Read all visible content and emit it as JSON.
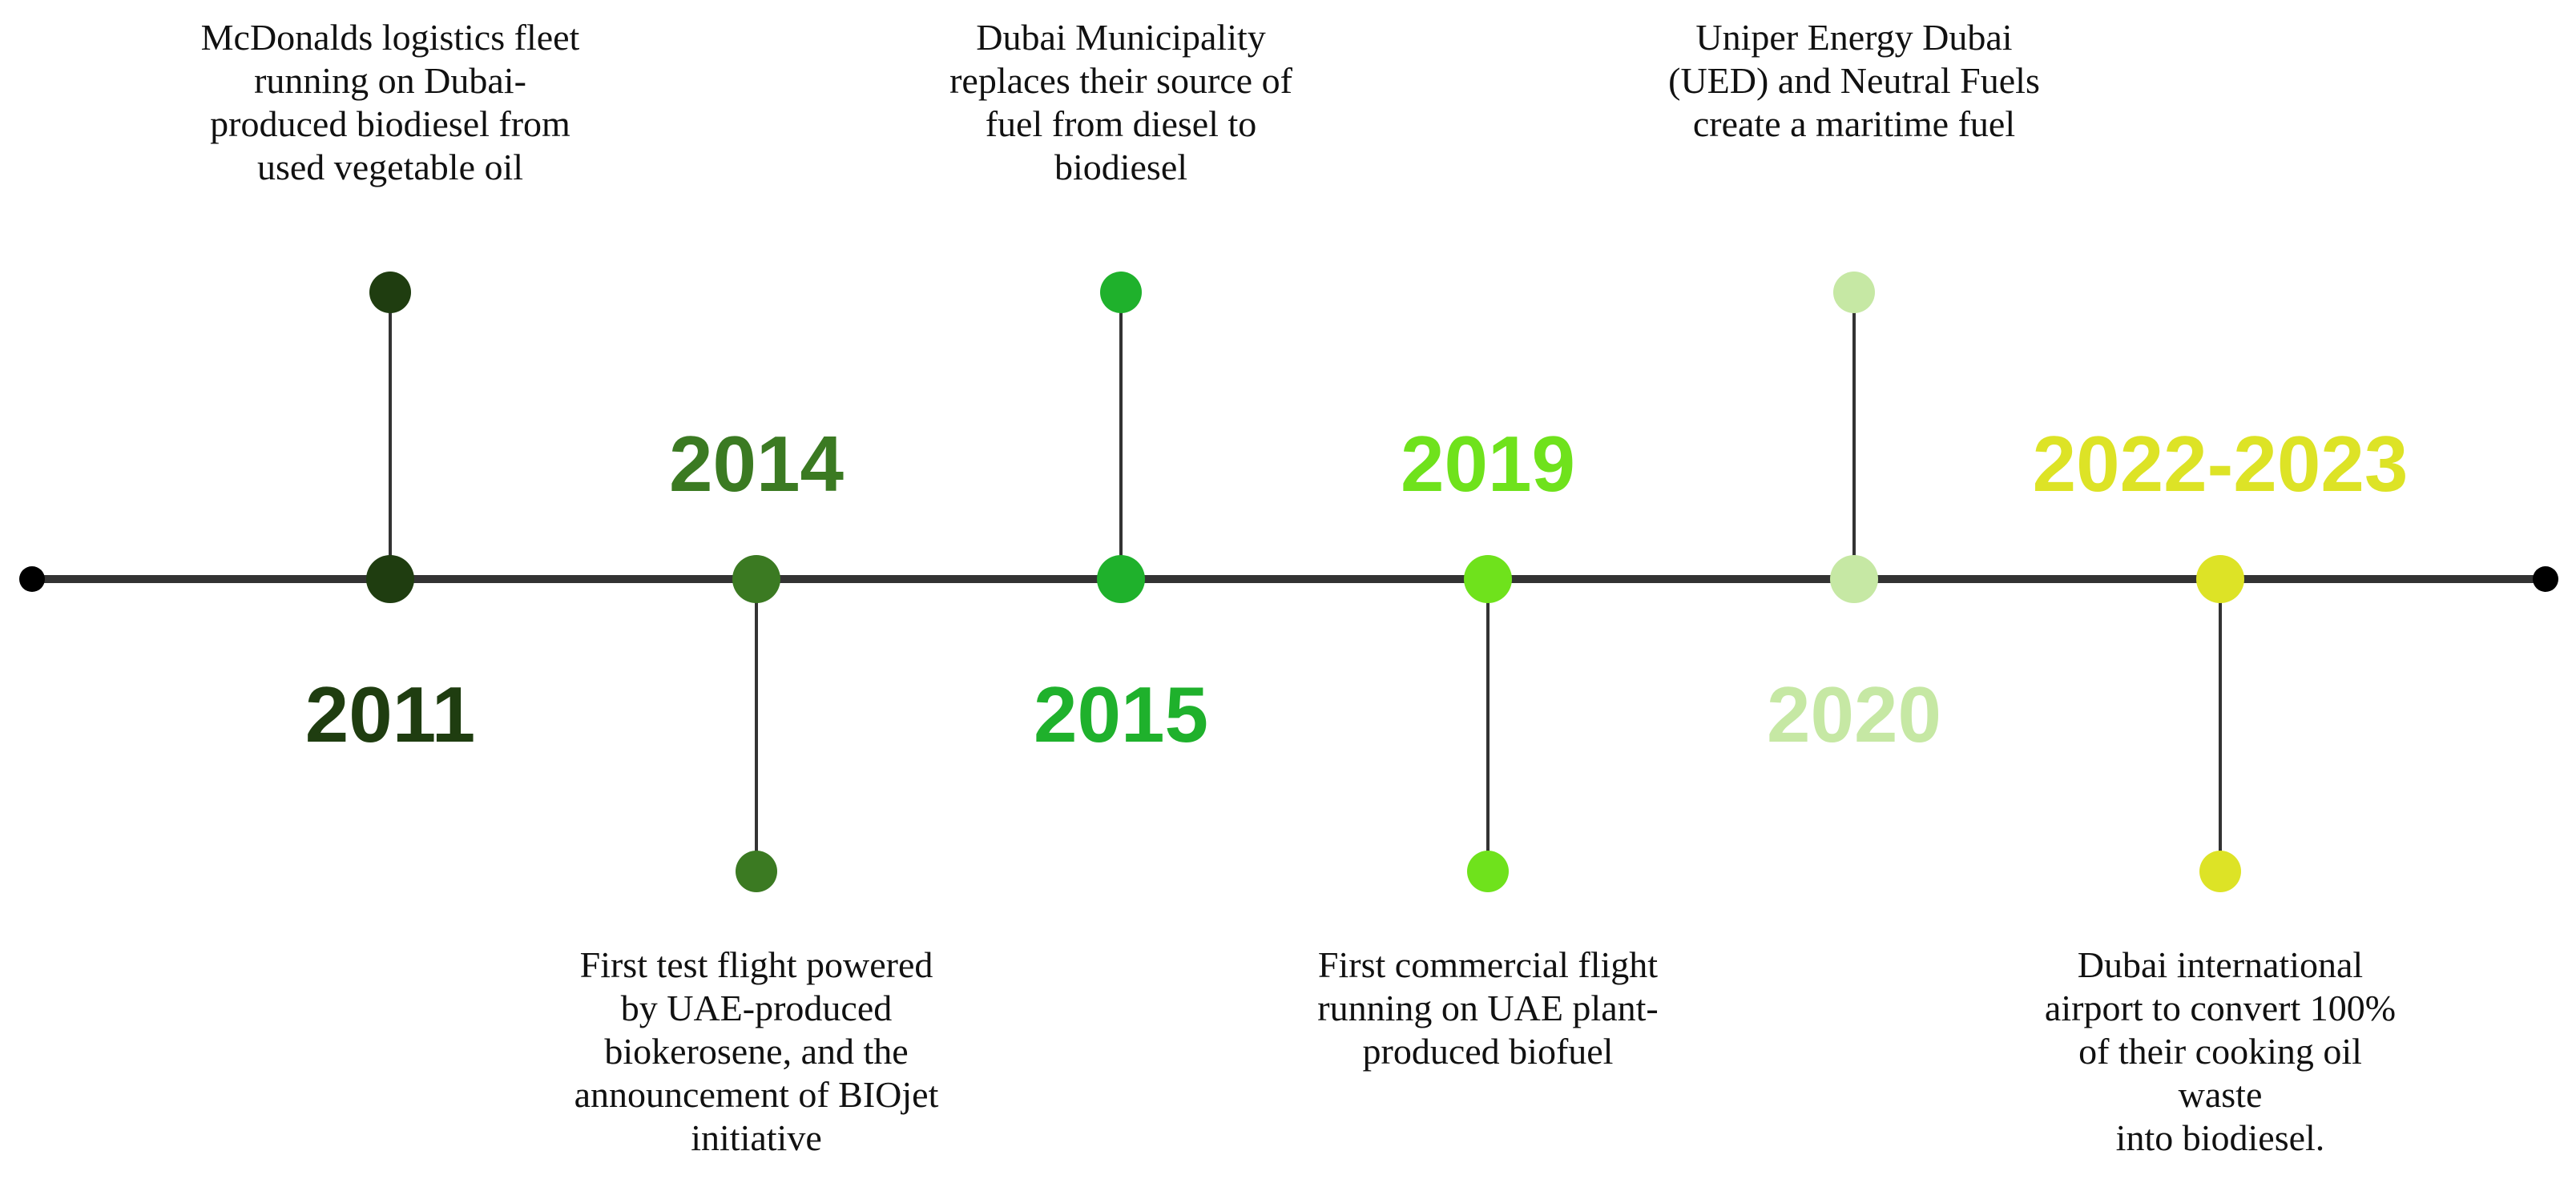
{
  "timeline": {
    "axis_color": "#333333",
    "milestones": [
      {
        "year": "2011",
        "color": "#1f3d10",
        "event": "McDonalds logistics fleet\nrunning on Dubai-\nproduced biodiesel  from\nused vegetable oil",
        "event_side": "above"
      },
      {
        "year": "2014",
        "color": "#3b7a22",
        "event": "First test flight powered\nby UAE-produced\nbiokerosene, and  the\nannouncement of BIOjet\ninitiative",
        "event_side": "below"
      },
      {
        "year": "2015",
        "color": "#1fb12c",
        "event": "Dubai Municipality\nreplaces their source of\nfuel from diesel to\nbiodiesel",
        "event_side": "above"
      },
      {
        "year": "2019",
        "color": "#6fe21c",
        "event": "First commercial flight\nrunning on UAE plant-\nproduced biofuel",
        "event_side": "below"
      },
      {
        "year": "2020",
        "color": "#c6e8a4",
        "event": "Uniper Energy Dubai\n(UED) and Neutral Fuels\ncreate a maritime fuel",
        "event_side": "above"
      },
      {
        "year": "2022-2023",
        "color": "#dde326",
        "event": "Dubai international\nairport to convert 100%\nof their cooking oil waste\ninto biodiesel.",
        "event_side": "below"
      }
    ]
  }
}
